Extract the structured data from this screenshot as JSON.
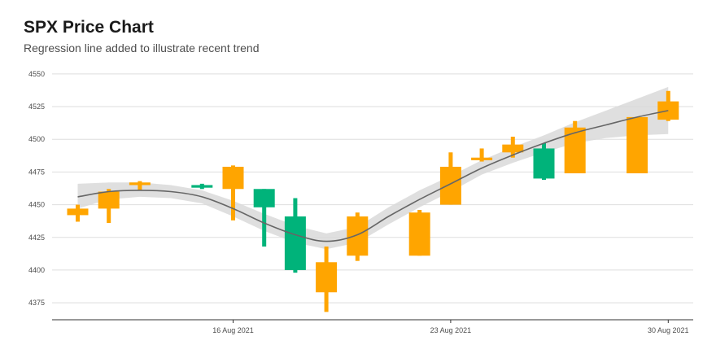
{
  "chart_data": {
    "type": "candlestick",
    "title": "SPX Price Chart",
    "subtitle": "Regression line added to illustrate recent trend",
    "xlabel": "",
    "ylabel": "",
    "ylim": [
      4362,
      4558
    ],
    "yticks": [
      4375,
      4400,
      4425,
      4450,
      4475,
      4500,
      4525,
      4550
    ],
    "xticks": [
      {
        "date": "2021-08-16",
        "label": "16 Aug 2021"
      },
      {
        "date": "2021-08-23",
        "label": "23 Aug 2021"
      },
      {
        "date": "2021-08-30",
        "label": "30 Aug 2021"
      }
    ],
    "grid": true,
    "colors": {
      "up": "#ffa500",
      "down": "#00b37a",
      "trend": "#666666",
      "band": "#d9d9d9"
    },
    "candles": [
      {
        "date": "2021-08-11",
        "open": 4442,
        "high": 4450,
        "low": 4437,
        "close": 4447,
        "direction": "up"
      },
      {
        "date": "2021-08-12",
        "open": 4447,
        "high": 4462,
        "low": 4436,
        "close": 4460,
        "direction": "up"
      },
      {
        "date": "2021-08-13",
        "open": 4465,
        "high": 4468,
        "low": 4461,
        "close": 4467,
        "direction": "up"
      },
      {
        "date": "2021-08-15",
        "open": 4465,
        "high": 4466,
        "low": 4462,
        "close": 4463,
        "direction": "down"
      },
      {
        "date": "2021-08-16",
        "open": 4462,
        "high": 4480,
        "low": 4438,
        "close": 4479,
        "direction": "up"
      },
      {
        "date": "2021-08-17",
        "open": 4462,
        "high": 4462,
        "low": 4418,
        "close": 4448,
        "direction": "down"
      },
      {
        "date": "2021-08-18",
        "open": 4441,
        "high": 4455,
        "low": 4398,
        "close": 4400,
        "direction": "down"
      },
      {
        "date": "2021-08-19",
        "open": 4383,
        "high": 4418,
        "low": 4368,
        "close": 4406,
        "direction": "up"
      },
      {
        "date": "2021-08-20",
        "open": 4411,
        "high": 4444,
        "low": 4407,
        "close": 4441,
        "direction": "up"
      },
      {
        "date": "2021-08-22",
        "open": 4411,
        "high": 4446,
        "low": 4411,
        "close": 4444,
        "direction": "up"
      },
      {
        "date": "2021-08-23",
        "open": 4450,
        "high": 4490,
        "low": 4450,
        "close": 4479,
        "direction": "up"
      },
      {
        "date": "2021-08-24",
        "open": 4484,
        "high": 4493,
        "low": 4483,
        "close": 4486,
        "direction": "up"
      },
      {
        "date": "2021-08-25",
        "open": 4490,
        "high": 4502,
        "low": 4486,
        "close": 4496,
        "direction": "up"
      },
      {
        "date": "2021-08-26",
        "open": 4493,
        "high": 4497,
        "low": 4469,
        "close": 4470,
        "direction": "down"
      },
      {
        "date": "2021-08-27",
        "open": 4474,
        "high": 4514,
        "low": 4474,
        "close": 4509,
        "direction": "up"
      },
      {
        "date": "2021-08-29",
        "open": 4474,
        "high": 4517,
        "low": 4474,
        "close": 4517,
        "direction": "up"
      },
      {
        "date": "2021-08-30",
        "open": 4515,
        "high": 4537,
        "low": 4514,
        "close": 4529,
        "direction": "up"
      }
    ],
    "trend": [
      {
        "date": "2021-08-11",
        "value": 4456,
        "lower": 4447,
        "upper": 4466
      },
      {
        "date": "2021-08-12",
        "value": 4460,
        "lower": 4454,
        "upper": 4467
      },
      {
        "date": "2021-08-13",
        "value": 4461,
        "lower": 4456,
        "upper": 4467
      },
      {
        "date": "2021-08-14",
        "value": 4460,
        "lower": 4455,
        "upper": 4465
      },
      {
        "date": "2021-08-15",
        "value": 4456,
        "lower": 4451,
        "upper": 4461
      },
      {
        "date": "2021-08-16",
        "value": 4447,
        "lower": 4441,
        "upper": 4453
      },
      {
        "date": "2021-08-17",
        "value": 4436,
        "lower": 4430,
        "upper": 4443
      },
      {
        "date": "2021-08-18",
        "value": 4427,
        "lower": 4421,
        "upper": 4434
      },
      {
        "date": "2021-08-19",
        "value": 4422,
        "lower": 4416,
        "upper": 4428
      },
      {
        "date": "2021-08-20",
        "value": 4427,
        "lower": 4421,
        "upper": 4433
      },
      {
        "date": "2021-08-21",
        "value": 4441,
        "lower": 4435,
        "upper": 4448
      },
      {
        "date": "2021-08-22",
        "value": 4454,
        "lower": 4448,
        "upper": 4461
      },
      {
        "date": "2021-08-23",
        "value": 4466,
        "lower": 4460,
        "upper": 4472
      },
      {
        "date": "2021-08-24",
        "value": 4478,
        "lower": 4473,
        "upper": 4484
      },
      {
        "date": "2021-08-25",
        "value": 4488,
        "lower": 4482,
        "upper": 4494
      },
      {
        "date": "2021-08-26",
        "value": 4497,
        "lower": 4490,
        "upper": 4503
      },
      {
        "date": "2021-08-27",
        "value": 4505,
        "lower": 4497,
        "upper": 4513
      },
      {
        "date": "2021-08-28",
        "value": 4511,
        "lower": 4501,
        "upper": 4522
      },
      {
        "date": "2021-08-29",
        "value": 4517,
        "lower": 4503,
        "upper": 4531
      },
      {
        "date": "2021-08-30",
        "value": 4522,
        "lower": 4504,
        "upper": 4540
      }
    ]
  }
}
